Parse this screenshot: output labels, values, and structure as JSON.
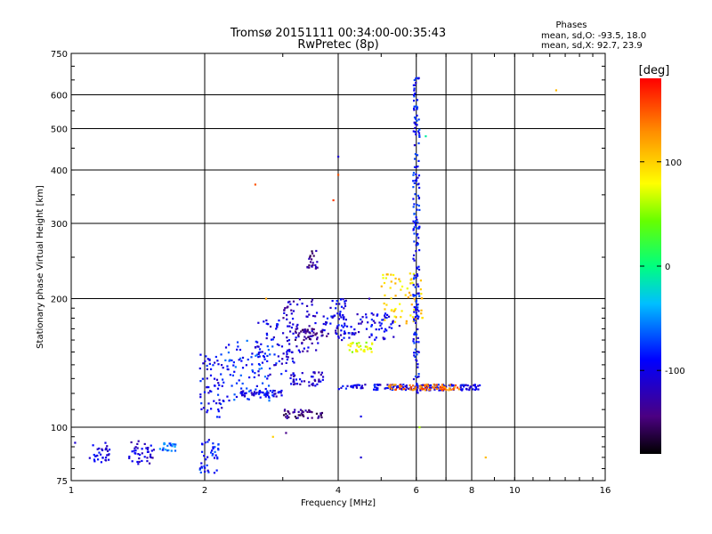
{
  "chart_data": {
    "type": "scatter",
    "title": "Tromsø 20151111 00:34:00-00:35:43",
    "subtitle": "RwPretec (8p)",
    "xlabel": "Frequency [MHz]",
    "ylabel": "Stationary phase Virtual Height [km]",
    "x_scale": "log",
    "y_scale": "log",
    "xlim": [
      1,
      16
    ],
    "ylim": [
      75,
      750
    ],
    "x_ticks": [
      1,
      2,
      4,
      6,
      8,
      10,
      16
    ],
    "x_tick_labels": [
      "1",
      "2",
      "4",
      "6",
      "8",
      "10",
      "16"
    ],
    "x_minor_gridlines": [
      7
    ],
    "y_ticks": [
      75,
      100,
      200,
      300,
      400,
      500,
      600,
      750
    ],
    "y_tick_labels": [
      "75",
      "100",
      "200",
      "300",
      "400",
      "500",
      "600",
      "750"
    ],
    "grid": true,
    "phases_box": {
      "title": "Phases",
      "line_o": "mean, sd,O: -93.5, 18.0",
      "line_x": "mean, sd,X:  92.7, 23.9"
    },
    "colorbar": {
      "label": "[deg]",
      "range": [
        -180,
        180
      ],
      "ticks": [
        100,
        0,
        -100
      ],
      "tick_labels": [
        "100",
        "0",
        "-100"
      ],
      "colormap": "rainbow"
    },
    "clusters": [
      {
        "x": [
          1.1,
          1.22
        ],
        "y": [
          82,
          92
        ],
        "phase": -100
      },
      {
        "x": [
          1.35,
          1.55
        ],
        "y": [
          82,
          93
        ],
        "phase": -110
      },
      {
        "x": [
          1.58,
          1.72
        ],
        "y": [
          88,
          92
        ],
        "phase": -60
      },
      {
        "x": [
          1.95,
          2.15
        ],
        "y": [
          78,
          95
        ],
        "phase": -85
      },
      {
        "x": [
          1.95,
          2.2
        ],
        "y": [
          105,
          150
        ],
        "phase": -95
      },
      {
        "x": [
          2.2,
          2.85
        ],
        "y": [
          115,
          160
        ],
        "phase": -80
      },
      {
        "x": [
          2.4,
          3.0
        ],
        "y": [
          118,
          122
        ],
        "phase": -100
      },
      {
        "x": [
          2.6,
          3.2
        ],
        "y": [
          130,
          180
        ],
        "phase": -100
      },
      {
        "x": [
          3.0,
          3.6
        ],
        "y": [
          150,
          200
        ],
        "phase": -115
      },
      {
        "x": [
          3.2,
          3.8
        ],
        "y": [
          160,
          170
        ],
        "phase": -140
      },
      {
        "x": [
          3.1,
          3.7
        ],
        "y": [
          125,
          135
        ],
        "phase": -110
      },
      {
        "x": [
          3.0,
          3.7
        ],
        "y": [
          105,
          110
        ],
        "phase": -140
      },
      {
        "x": [
          3.7,
          4.2
        ],
        "y": [
          165,
          200
        ],
        "phase": -100
      },
      {
        "x": [
          4.0,
          5.5
        ],
        "y": [
          160,
          185
        ],
        "phase": -100
      },
      {
        "x": [
          4.2,
          4.8
        ],
        "y": [
          150,
          158
        ],
        "phase": 70
      },
      {
        "x": [
          5.0,
          6.2
        ],
        "y": [
          175,
          230
        ],
        "phase": 95
      },
      {
        "x": [
          4.0,
          8.4
        ],
        "y": [
          122,
          126
        ],
        "phase": -100
      },
      {
        "x": [
          5.2,
          7.5
        ],
        "y": [
          122,
          126
        ],
        "phase": 140
      },
      {
        "x": [
          5.9,
          6.1
        ],
        "y": [
          120,
          660
        ],
        "phase": -90
      },
      {
        "x": [
          3.4,
          3.6
        ],
        "y": [
          235,
          260
        ],
        "phase": -140
      }
    ],
    "isolated_points": [
      {
        "x": 1.02,
        "y": 92,
        "phase": -110
      },
      {
        "x": 2.6,
        "y": 370,
        "phase": 150
      },
      {
        "x": 2.75,
        "y": 200,
        "phase": 120
      },
      {
        "x": 2.85,
        "y": 95,
        "phase": 100
      },
      {
        "x": 3.05,
        "y": 97,
        "phase": -140
      },
      {
        "x": 3.9,
        "y": 340,
        "phase": 160
      },
      {
        "x": 4.0,
        "y": 390,
        "phase": 150
      },
      {
        "x": 4.0,
        "y": 430,
        "phase": -110
      },
      {
        "x": 4.5,
        "y": 85,
        "phase": -110
      },
      {
        "x": 4.5,
        "y": 106,
        "phase": -100
      },
      {
        "x": 4.7,
        "y": 200,
        "phase": -120
      },
      {
        "x": 6.1,
        "y": 100,
        "phase": 60
      },
      {
        "x": 6.3,
        "y": 480,
        "phase": -10
      },
      {
        "x": 8.6,
        "y": 85,
        "phase": 110
      },
      {
        "x": 12.4,
        "y": 615,
        "phase": 110
      }
    ]
  }
}
